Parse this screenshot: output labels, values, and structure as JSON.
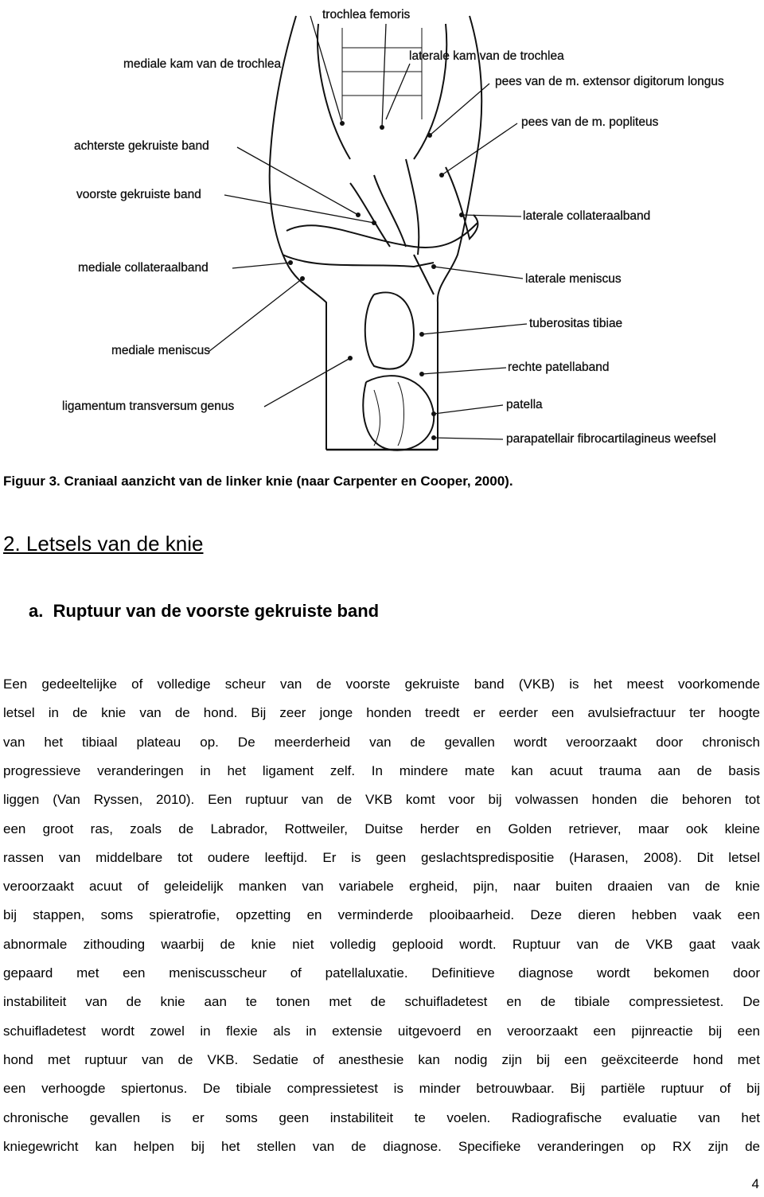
{
  "figure": {
    "labels": [
      "trochlea femoris",
      "mediale kam van de trochlea",
      "laterale kam van de trochlea",
      "pees van de m. extensor digitorum longus",
      "pees van de m. popliteus",
      "achterste gekruiste band",
      "voorste gekruiste band",
      "laterale collateraalband",
      "mediale collateraalband",
      "laterale meniscus",
      "tuberositas tibiae",
      "mediale meniscus",
      "rechte patellaband",
      "patella",
      "ligamentum transversum genus",
      "parapatellair fibrocartilagineus weefsel"
    ],
    "caption": "Figuur 3. Craniaal aanzicht van de linker knie (naar Carpenter en Cooper, 2000)."
  },
  "section_heading": "2. Letsels van de knie",
  "subsection_heading": "a.  Ruptuur van de voorste gekruiste band",
  "paragraph": {
    "lines": [
      "Een gedeeltelijke of volledige scheur van de voorste gekruiste band (VKB) is het meest voorkomende",
      "letsel in de knie van de hond. Bij zeer jonge honden treedt er eerder een avulsiefractuur ter hoogte",
      "van het tibiaal plateau op. De meerderheid van de gevallen wordt veroorzaakt door chronisch",
      "progressieve veranderingen in het ligament zelf. In mindere mate kan acuut trauma aan de basis",
      "liggen (Van Ryssen, 2010). Een ruptuur van de VKB komt voor bij volwassen honden die behoren tot",
      "een groot ras, zoals de Labrador, Rottweiler, Duitse herder en Golden retriever, maar ook kleine",
      "rassen van middelbare tot oudere leeftijd. Er is geen geslachtspredispositie (Harasen, 2008). Dit letsel",
      "veroorzaakt acuut of geleidelijk manken van variabele ergheid, pijn, naar buiten draaien van de knie",
      "bij stappen, soms spieratrofie, opzetting en verminderde plooibaarheid. Deze dieren hebben vaak een",
      "abnormale zithouding waarbij de knie niet volledig geplooid wordt. Ruptuur van de VKB gaat vaak",
      "gepaard met een meniscusscheur of patellaluxatie. Definitieve diagnose wordt bekomen door",
      "instabiliteit van de knie aan te tonen met de schuifladetest en de tibiale compressietest. De",
      "schuifladetest wordt zowel in flexie als in extensie uitgevoerd en veroorzaakt een pijnreactie bij een",
      "hond met ruptuur van de VKB. Sedatie of anesthesie kan nodig zijn bij een geëxciteerde hond met",
      "een verhoogde spiertonus. De tibiale compressietest is minder betrouwbaar. Bij partiële ruptuur of bij",
      "chronische gevallen is er soms geen instabiliteit te voelen. Radiografische evaluatie van het",
      "kniegewricht kan helpen bij het stellen van de diagnose. Specifieke veranderingen op RX zijn de"
    ]
  },
  "page_number": "4"
}
